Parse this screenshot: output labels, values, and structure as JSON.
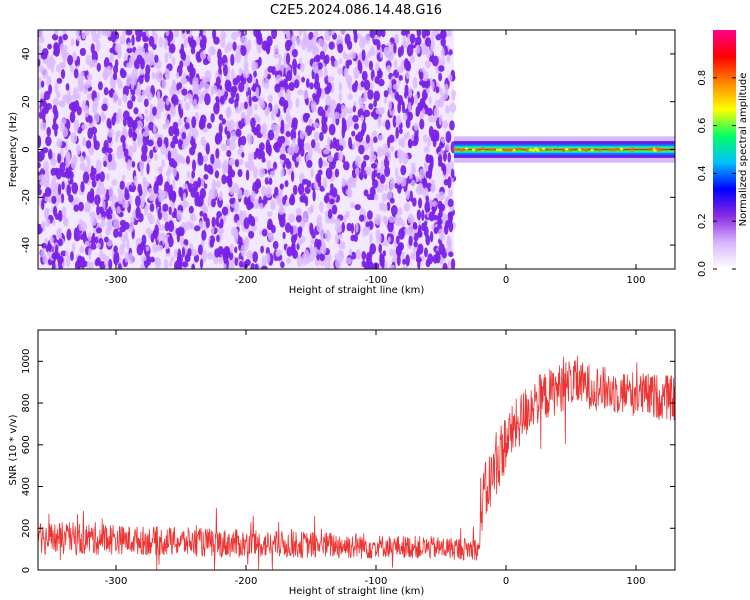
{
  "title": "C2E5.2024.086.14.48.G16",
  "chart_data": [
    {
      "type": "heatmap",
      "xlabel": "Height of straight line (km)",
      "ylabel": "Frequency (Hz)",
      "xlim": [
        -360,
        130
      ],
      "ylim": [
        -50,
        50
      ],
      "xticks": [
        -300,
        -200,
        -100,
        0,
        100
      ],
      "yticks": [
        -40,
        -20,
        0,
        20,
        40
      ],
      "colorbar": {
        "label": "Normalized spectral amplitude",
        "range": [
          0,
          1
        ],
        "ticks": [
          0.0,
          0.2,
          0.4,
          0.6,
          0.8
        ],
        "colors": [
          "#ffffff",
          "#d9b3ff",
          "#8a2be2",
          "#0000ff",
          "#00bfff",
          "#00ff66",
          "#ffff00",
          "#ff8800",
          "#ff0000",
          "#ff0088"
        ]
      },
      "regions": [
        {
          "x": [
            -360,
            -40
          ],
          "y": [
            -50,
            50
          ],
          "amplitude": [
            0.0,
            0.25
          ],
          "pattern": "noise"
        },
        {
          "x": [
            -40,
            130
          ],
          "y": [
            -3,
            3
          ],
          "amplitude": [
            0.3,
            0.9
          ],
          "pattern": "narrow-band signal"
        }
      ],
      "colors": {
        "noise_dark": "#7a22e8",
        "noise_light": "#d9b8ff"
      }
    },
    {
      "type": "line",
      "xlabel": "Height of straight line (km)",
      "ylabel": "SNR (10 * v/v)",
      "xlim": [
        -360,
        130
      ],
      "ylim": [
        0,
        1150
      ],
      "xticks": [
        -300,
        -200,
        -100,
        0,
        100
      ],
      "yticks": [
        0,
        200,
        400,
        600,
        800,
        1000
      ],
      "color": "#ee3333",
      "segments": [
        {
          "x": [
            -360,
            -300
          ],
          "mean": [
            150,
            150
          ],
          "noise": 80
        },
        {
          "x": [
            -300,
            -200
          ],
          "mean": [
            145,
            125
          ],
          "noise": 70
        },
        {
          "x": [
            -200,
            -100
          ],
          "mean": [
            125,
            115
          ],
          "noise": 65
        },
        {
          "x": [
            -100,
            -20
          ],
          "mean": [
            115,
            100
          ],
          "noise": 55
        },
        {
          "x": [
            -20,
            0
          ],
          "mean": [
            300,
            620
          ],
          "noise": 150
        },
        {
          "x": [
            0,
            20
          ],
          "mean": [
            620,
            800
          ],
          "noise": 130
        },
        {
          "x": [
            20,
            50
          ],
          "mean": [
            800,
            900
          ],
          "noise": 120
        },
        {
          "x": [
            50,
            80
          ],
          "mean": [
            900,
            860
          ],
          "noise": 110
        },
        {
          "x": [
            80,
            130
          ],
          "mean": [
            860,
            820
          ],
          "noise": 110
        }
      ]
    }
  ]
}
